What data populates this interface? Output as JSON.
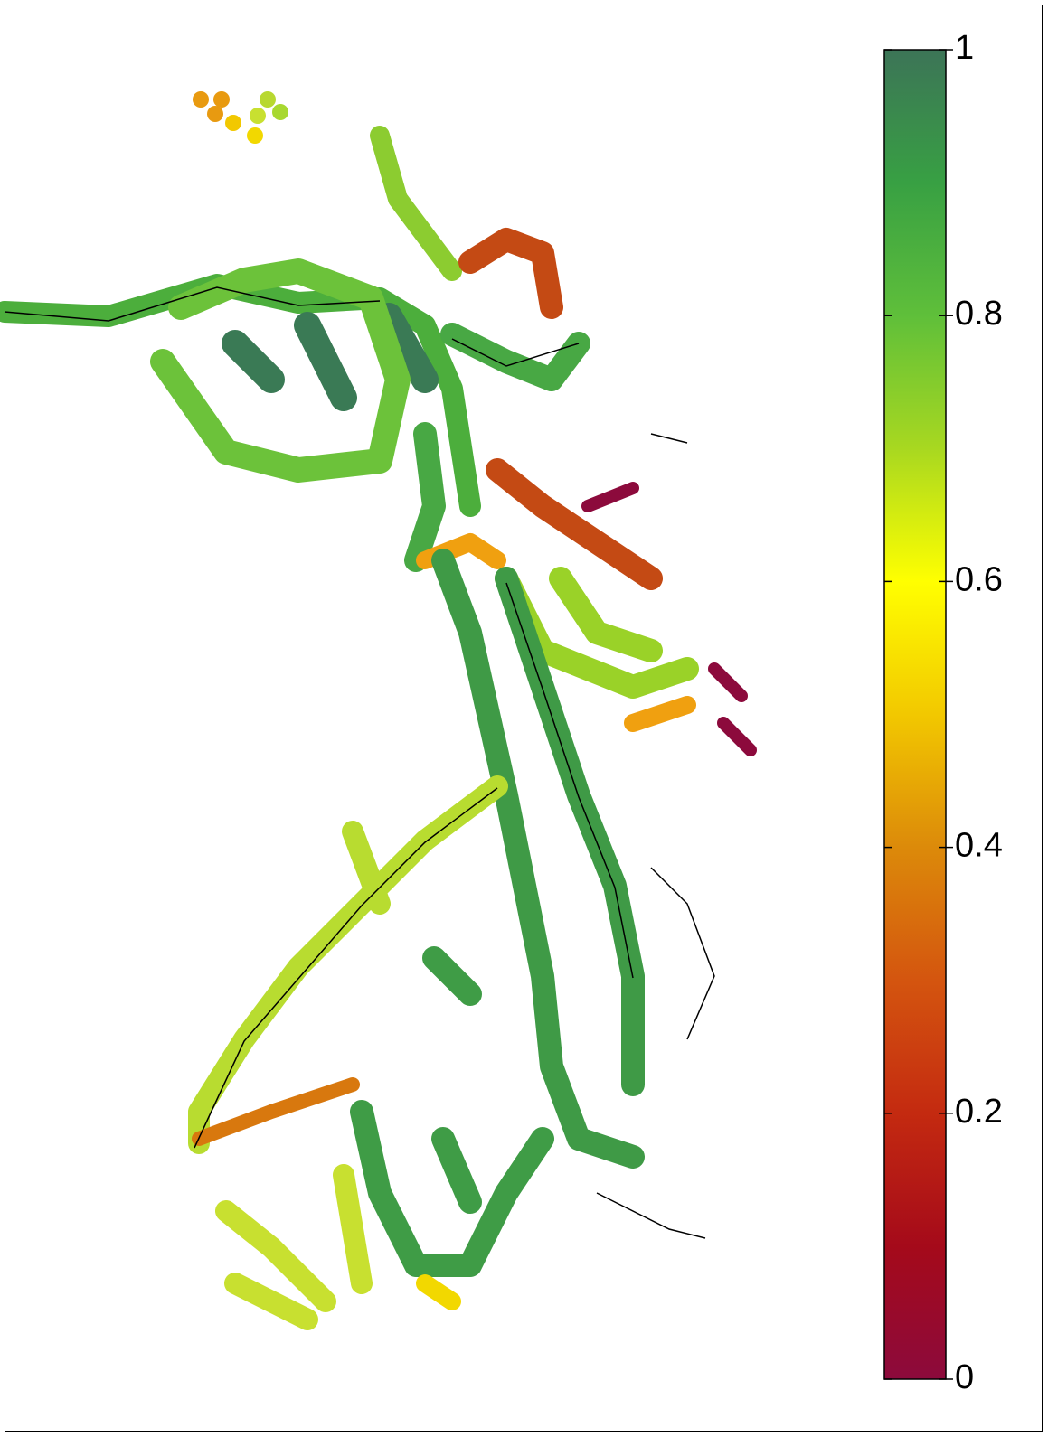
{
  "map": {
    "colorbar": {
      "clim": [
        0,
        1
      ],
      "ticks": [
        0,
        0.2,
        0.4,
        0.6,
        0.8,
        1
      ],
      "colormap": [
        "#8c0a3c",
        "#a50a1a",
        "#c42a10",
        "#d4550f",
        "#dc8a0a",
        "#f2c800",
        "#ffff00",
        "#a8d820",
        "#5fbf3a",
        "#38a043",
        "#3c7457"
      ]
    }
  }
}
